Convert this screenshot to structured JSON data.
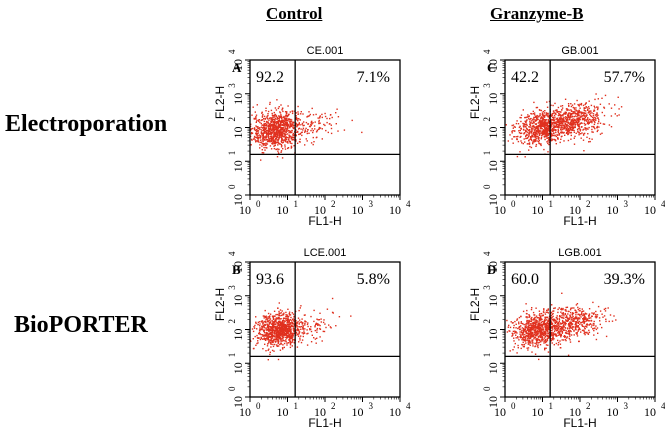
{
  "column_headers": [
    "Control",
    "Granzyme-B"
  ],
  "row_labels": [
    "Electroporation",
    "BioPORTER"
  ],
  "axes": {
    "xlabel": "FL1-H",
    "ylabel": "FL2-H",
    "tick_labels": [
      "10",
      "10",
      "10",
      "10",
      "10"
    ],
    "tick_exponents": [
      "0",
      "1",
      "2",
      "3",
      "4"
    ],
    "scale": "log",
    "range": [
      1,
      10000
    ]
  },
  "colors": {
    "dots": "#e0301e",
    "gates": "#000000",
    "text": "#000000"
  },
  "chart_data": [
    {
      "type": "scatter",
      "panel_letter": "A",
      "title": "CE.001",
      "xlabel": "FL1-H",
      "ylabel": "FL2-H",
      "quadrant_labels": {
        "upper_left": "92.2",
        "upper_right": "7.1%"
      },
      "xlim": [
        1,
        10000
      ],
      "ylim": [
        1,
        10000
      ],
      "xscale": "log",
      "yscale": "log",
      "gate_x": 16,
      "gate_y": 16,
      "clusters": [
        {
          "center_x": 5,
          "center_y": 90,
          "spread_x": 0.33,
          "spread_y": 0.28,
          "count": 900
        },
        {
          "center_x": 60,
          "center_y": 120,
          "spread_x": 0.35,
          "spread_y": 0.22,
          "count": 90
        }
      ]
    },
    {
      "type": "scatter",
      "panel_letter": "C",
      "title": "GB.001",
      "xlabel": "FL1-H",
      "ylabel": "FL2-H",
      "quadrant_labels": {
        "upper_left": "42.2",
        "upper_right": "57.7%"
      },
      "xlim": [
        1,
        10000
      ],
      "ylim": [
        1,
        10000
      ],
      "xscale": "log",
      "yscale": "log",
      "gate_x": 16,
      "gate_y": 16,
      "clusters": [
        {
          "center_x": 8,
          "center_y": 100,
          "spread_x": 0.33,
          "spread_y": 0.25,
          "count": 600
        },
        {
          "center_x": 60,
          "center_y": 160,
          "spread_x": 0.45,
          "spread_y": 0.25,
          "count": 650
        }
      ]
    },
    {
      "type": "scatter",
      "panel_letter": "B",
      "title": "LCE.001",
      "xlabel": "FL1-H",
      "ylabel": "FL2-H",
      "quadrant_labels": {
        "upper_left": "93.6",
        "upper_right": "5.8%"
      },
      "xlim": [
        1,
        10000
      ],
      "ylim": [
        1,
        10000
      ],
      "xscale": "log",
      "yscale": "log",
      "gate_x": 16,
      "gate_y": 16,
      "clusters": [
        {
          "center_x": 6,
          "center_y": 100,
          "spread_x": 0.3,
          "spread_y": 0.25,
          "count": 900
        },
        {
          "center_x": 50,
          "center_y": 140,
          "spread_x": 0.35,
          "spread_y": 0.22,
          "count": 70
        }
      ]
    },
    {
      "type": "scatter",
      "panel_letter": "D",
      "title": "LGB.001",
      "xlabel": "FL1-H",
      "ylabel": "FL2-H",
      "quadrant_labels": {
        "upper_left": "60.0",
        "upper_right": "39.3%"
      },
      "xlim": [
        1,
        10000
      ],
      "ylim": [
        1,
        10000
      ],
      "xscale": "log",
      "yscale": "log",
      "gate_x": 16,
      "gate_y": 16,
      "clusters": [
        {
          "center_x": 7,
          "center_y": 100,
          "spread_x": 0.33,
          "spread_y": 0.26,
          "count": 750
        },
        {
          "center_x": 60,
          "center_y": 160,
          "spread_x": 0.42,
          "spread_y": 0.25,
          "count": 450
        }
      ]
    }
  ]
}
